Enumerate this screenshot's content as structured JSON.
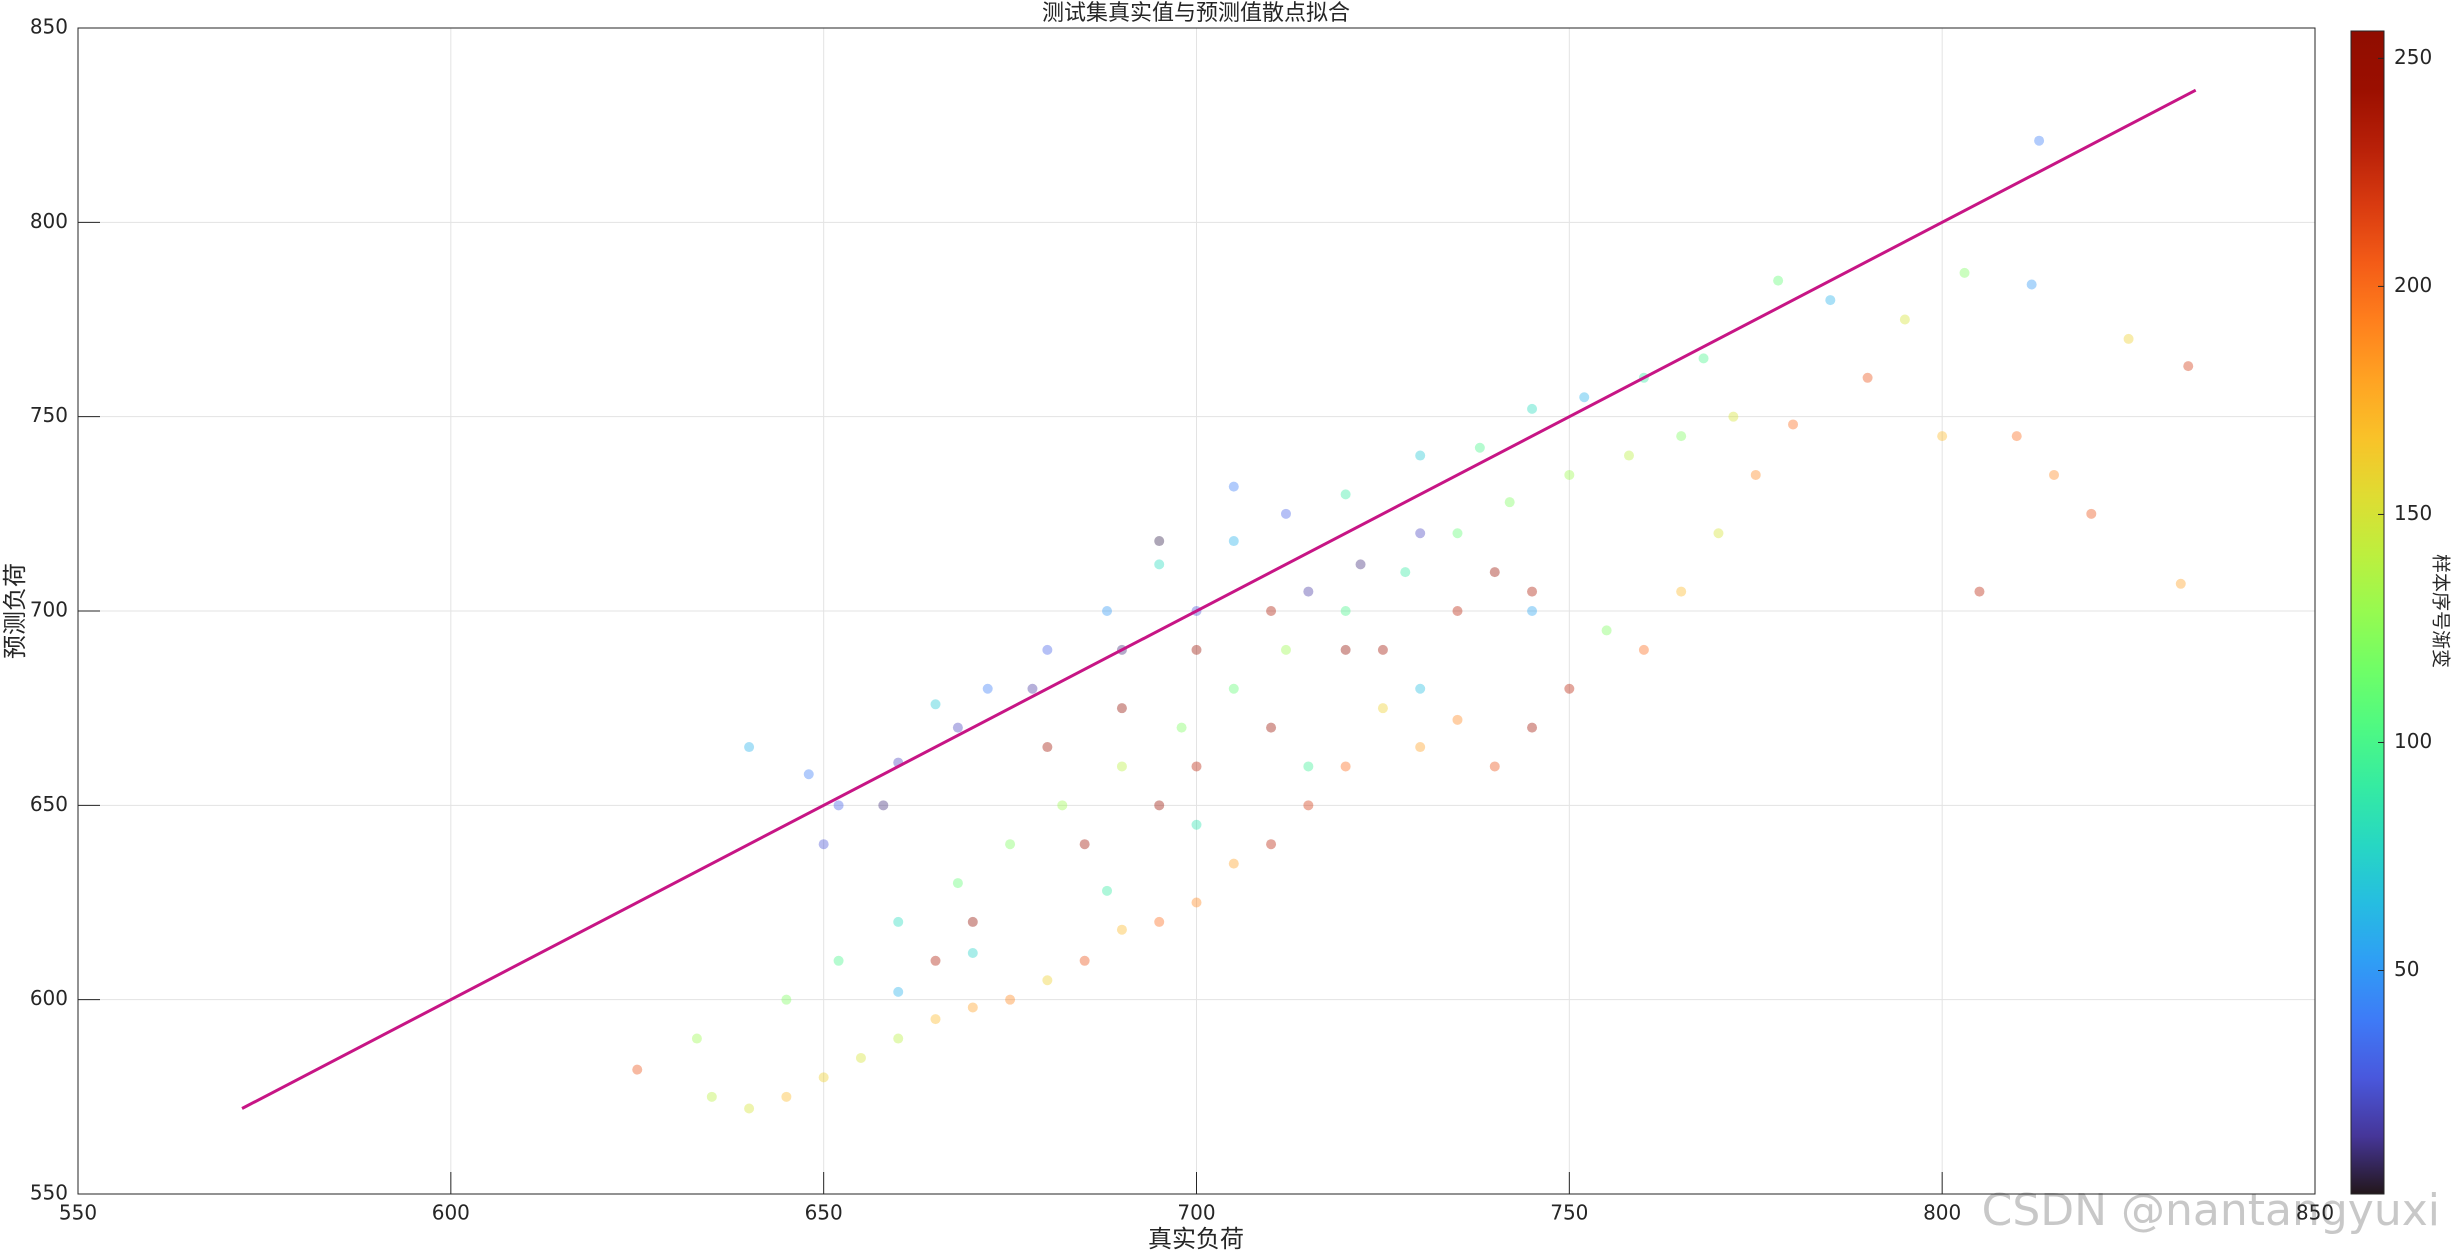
{
  "chart_data": {
    "type": "scatter",
    "title": "测试集真实值与预测值散点拟合",
    "x_label": "真实负荷",
    "y_label": "预测负荷",
    "x": [
      640,
      648,
      652,
      660,
      665,
      672,
      680,
      688,
      695,
      705,
      712,
      720,
      730,
      738,
      745,
      752,
      760,
      768,
      778,
      785,
      813,
      812,
      803,
      795,
      800,
      810,
      815,
      820,
      805,
      833,
      832,
      825,
      790,
      780,
      775,
      770,
      765,
      760,
      755,
      750,
      745,
      740,
      735,
      730,
      725,
      720,
      715,
      710,
      705,
      700,
      695,
      690,
      685,
      680,
      675,
      670,
      665,
      660,
      655,
      650,
      645,
      640,
      635,
      625,
      633,
      645,
      652,
      660,
      668,
      675,
      682,
      690,
      698,
      705,
      712,
      720,
      728,
      735,
      742,
      750,
      758,
      765,
      772,
      680,
      690,
      700,
      710,
      720,
      695,
      685,
      670,
      665,
      700,
      710,
      725,
      735,
      740,
      745,
      730,
      722,
      715,
      700,
      690,
      678,
      668,
      658,
      650,
      705,
      695,
      660,
      670,
      688,
      700,
      715,
      730,
      745
    ],
    "values": [
      665,
      658,
      650,
      661,
      676,
      680,
      690,
      700,
      712,
      718,
      725,
      730,
      740,
      742,
      752,
      755,
      760,
      765,
      785,
      780,
      821,
      784,
      787,
      775,
      745,
      745,
      735,
      725,
      705,
      763,
      707,
      770,
      760,
      748,
      735,
      720,
      705,
      690,
      695,
      680,
      670,
      660,
      672,
      665,
      675,
      660,
      650,
      640,
      635,
      625,
      620,
      618,
      610,
      605,
      600,
      598,
      595,
      590,
      585,
      580,
      575,
      572,
      575,
      582,
      590,
      600,
      610,
      620,
      630,
      640,
      650,
      660,
      670,
      680,
      690,
      700,
      710,
      720,
      728,
      735,
      740,
      745,
      750,
      665,
      675,
      690,
      700,
      690,
      650,
      640,
      620,
      610,
      660,
      670,
      690,
      700,
      710,
      705,
      720,
      712,
      705,
      700,
      690,
      680,
      670,
      650,
      640,
      732,
      718,
      602,
      612,
      628,
      645,
      660,
      680,
      700
    ],
    "color_values": [
      60,
      40,
      30,
      20,
      70,
      40,
      30,
      50,
      80,
      60,
      30,
      90,
      70,
      100,
      80,
      60,
      90,
      100,
      110,
      60,
      40,
      50,
      120,
      150,
      170,
      200,
      190,
      210,
      230,
      220,
      180,
      160,
      210,
      200,
      190,
      150,
      170,
      200,
      120,
      230,
      240,
      210,
      190,
      180,
      160,
      200,
      220,
      230,
      180,
      190,
      200,
      170,
      210,
      160,
      190,
      180,
      170,
      140,
      150,
      160,
      170,
      150,
      140,
      210,
      130,
      120,
      100,
      80,
      110,
      120,
      130,
      140,
      120,
      110,
      130,
      100,
      90,
      110,
      120,
      130,
      140,
      120,
      150,
      240,
      250,
      245,
      235,
      250,
      245,
      240,
      250,
      235,
      230,
      245,
      240,
      230,
      245,
      235,
      20,
      10,
      15,
      25,
      10,
      15,
      20,
      10,
      25,
      40,
      5,
      60,
      75,
      90,
      85,
      95,
      65,
      55
    ],
    "colormap": "turbo",
    "marker_opacity": 0.4,
    "fit_line": {
      "x": [
        572,
        834
      ],
      "values": [
        572,
        834
      ],
      "color": "#c71585"
    },
    "xlim": [
      550,
      850
    ],
    "xticks": [
      550,
      600,
      650,
      700,
      750,
      800,
      850
    ],
    "ylim": [
      550,
      850
    ],
    "yticks": [
      550,
      600,
      650,
      700,
      750,
      800,
      850
    ],
    "grid": true,
    "colorbar": {
      "label": "样本序号渐变",
      "clim": [
        1,
        256
      ],
      "ticks": [
        50,
        100,
        150,
        200,
        250
      ]
    },
    "watermark": "CSDN @nantangyuxi"
  }
}
